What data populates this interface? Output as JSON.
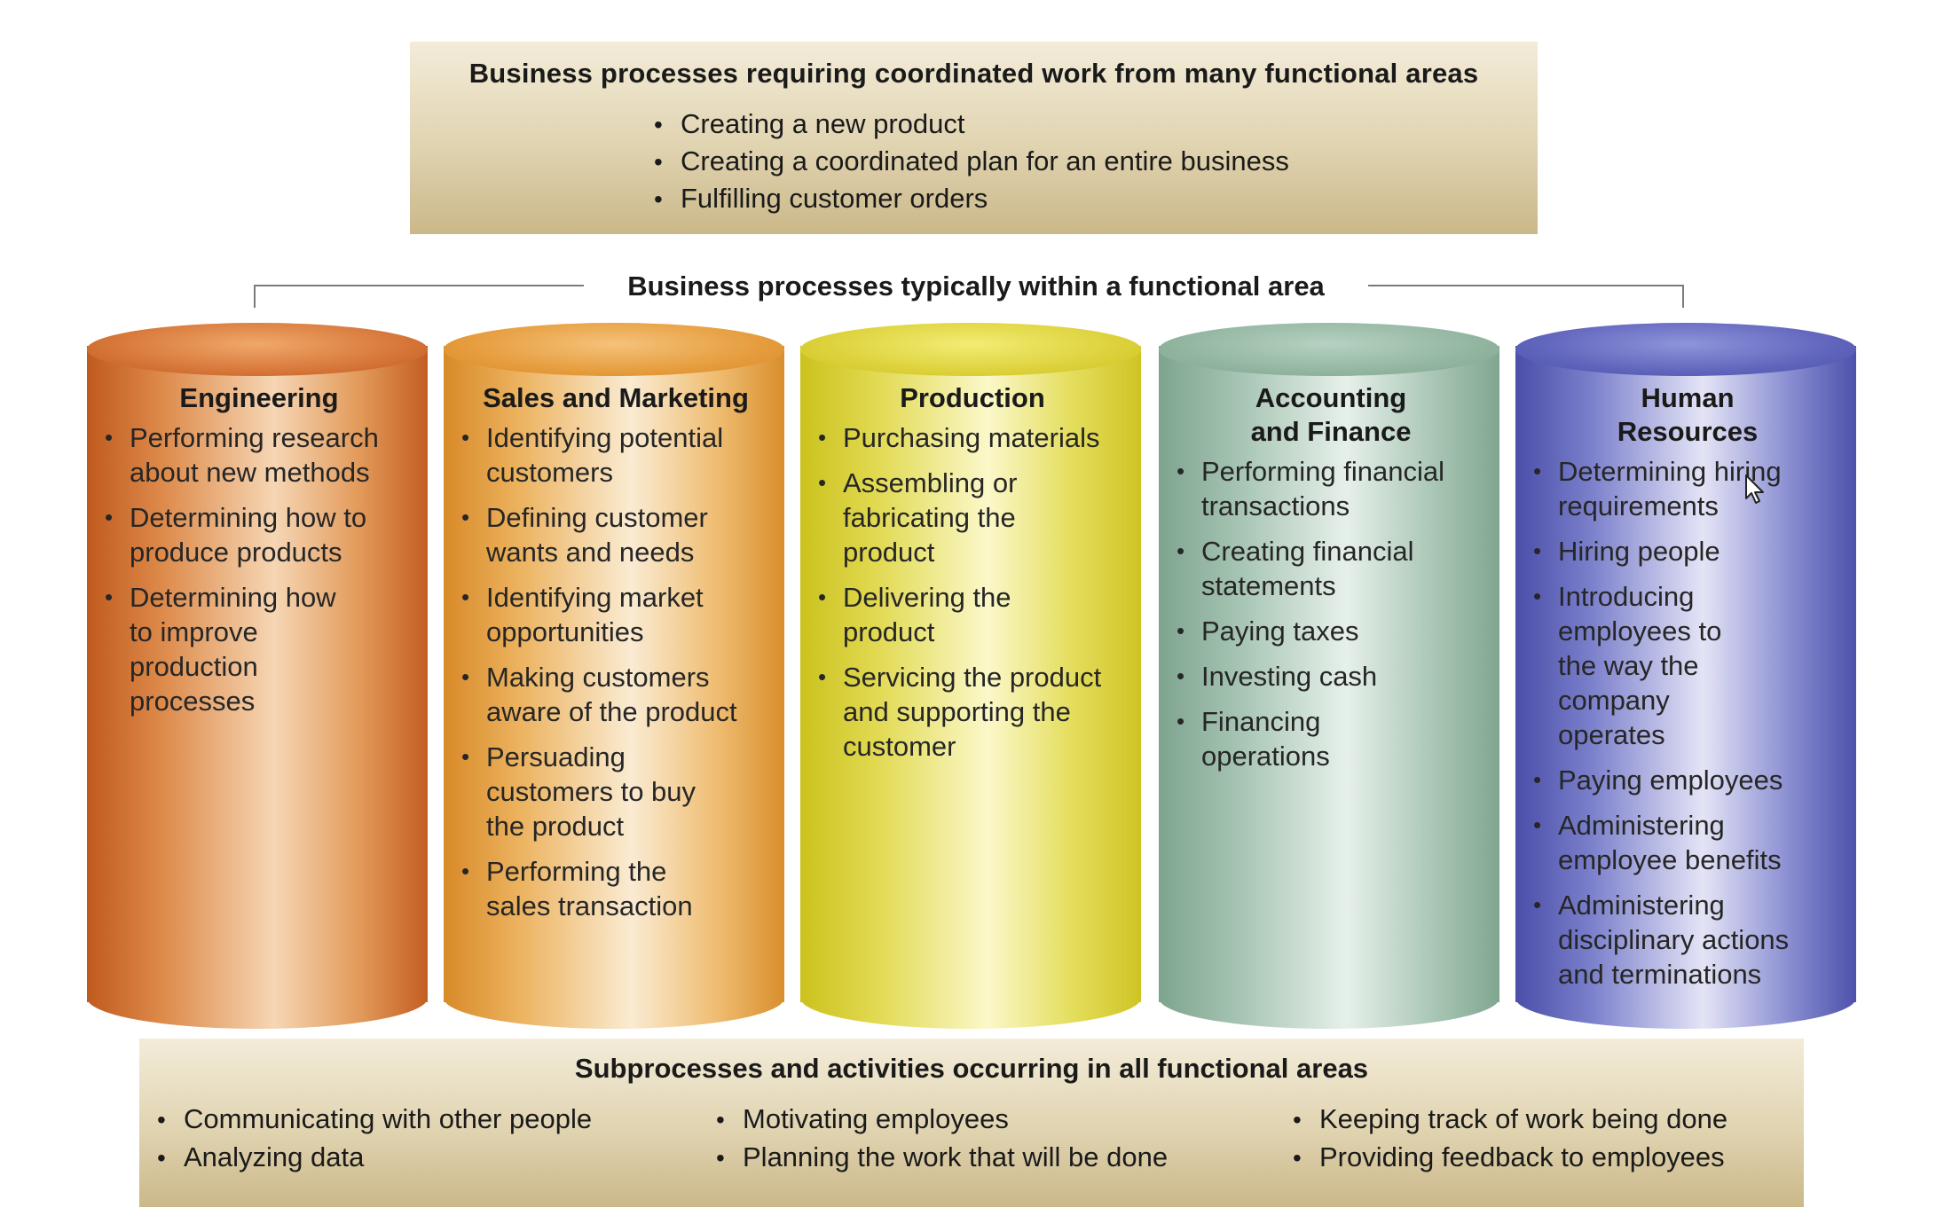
{
  "top_box": {
    "title": "Business processes requiring coordinated work from many functional areas",
    "items": [
      "Creating a new product",
      "Creating a coordinated plan for an entire business",
      "Fulfilling customer orders"
    ]
  },
  "bracket": {
    "label": "Business processes typically within a functional area"
  },
  "columns": [
    {
      "title_lines": [
        "Engineering"
      ],
      "color": "#d7773a",
      "items": [
        "Performing research about new methods",
        "Determining how to produce products",
        "Determining how to improve production processes"
      ]
    },
    {
      "title_lines": [
        "Sales and Marketing"
      ],
      "color": "#e69d3e",
      "items": [
        "Identifying potential customers",
        "Defining customer wants and needs",
        "Identifying market opportunities",
        "Making customers aware of the product",
        "Persuading customers to buy the product",
        "Performing the sales transaction"
      ]
    },
    {
      "title_lines": [
        "Production"
      ],
      "color": "#ddd23c",
      "items": [
        "Purchasing materials",
        "Assembling or fabricating the product",
        "Delivering the product",
        "Servicing the product and supporting the customer"
      ]
    },
    {
      "title_lines": [
        "Accounting",
        "and Finance"
      ],
      "color": "#93b6a1",
      "items": [
        "Performing financial transactions",
        "Creating financial statements",
        "Paying taxes",
        "Investing cash",
        "Financing operations"
      ]
    },
    {
      "title_lines": [
        "Human",
        "Resources"
      ],
      "color": "#6166bd",
      "items": [
        "Determining hiring requirements",
        "Hiring people",
        "Introducing employees to the way the company operates",
        "Paying employees",
        "Administering employee benefits",
        "Administering disciplinary actions and terminations"
      ]
    }
  ],
  "bottom_box": {
    "title": "Subprocesses and activities occurring in all functional areas",
    "col1": [
      "Communicating with other people",
      "Analyzing data"
    ],
    "col2": [
      "Motivating employees",
      "Planning the work that will be done"
    ],
    "col3": [
      "Keeping track of work being done",
      "Providing feedback to employees"
    ]
  },
  "icons": {
    "cursor": "mouse-pointer-icon"
  }
}
